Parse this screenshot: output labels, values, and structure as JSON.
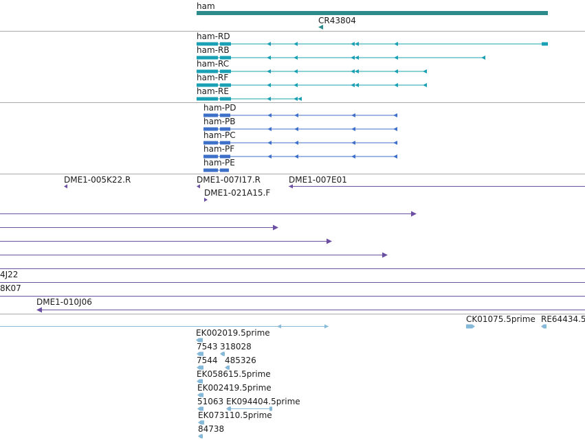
{
  "colors": {
    "gene": "#2e8b8b",
    "transcript": "#1aa0b4",
    "protein": "#3e6fc9",
    "clone": "#6a4fa3",
    "est": "#86b8d8",
    "separator": "#a9a9a9",
    "text": "#1a1a1a"
  },
  "genes": {
    "ham": "ham",
    "cr": "CR43804"
  },
  "transcripts": [
    "ham-RD",
    "ham-RB",
    "ham-RC",
    "ham-RF",
    "ham-RE"
  ],
  "proteins": [
    "ham-PD",
    "ham-PB",
    "ham-PC",
    "ham-PF",
    "ham-PE"
  ],
  "clones": {
    "c1": "DME1-005K22.R",
    "c2": "DME1-007I17.R",
    "c3": "DME1-007E01",
    "c4": "DME1-021A15.F",
    "c5": "4J22",
    "c6": "8K07",
    "c7": "DME1-010J06"
  },
  "ests": {
    "e1": "CK01075.5prime",
    "e2": "RE64434.5",
    "e3": "EK002019.5prime",
    "e4": "7543",
    "e5": "318028",
    "e6": "7544",
    "e7": "485326",
    "e8": "EK058615.5prime",
    "e9": "EK002419.5prime",
    "e10": "51063",
    "e11": "EK094404.5prime",
    "e12": "EK073110.5prime",
    "e13": "84738"
  }
}
